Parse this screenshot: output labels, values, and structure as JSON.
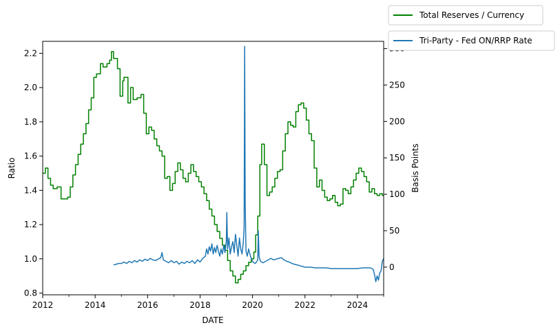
{
  "chart_data": {
    "type": "line",
    "xlabel": "DATE",
    "ylabel_left": "Ratio",
    "ylabel_right": "Basis Points",
    "xlim": [
      2012.0,
      2025.0
    ],
    "ylim_left": [
      0.79,
      2.27
    ],
    "ylim_right": [
      -38,
      310
    ],
    "x_ticks": [
      2012,
      2014,
      2016,
      2018,
      2020,
      2022,
      2024
    ],
    "x_tick_labels": [
      "2012",
      "2014",
      "2016",
      "2018",
      "2020",
      "2022",
      "2024"
    ],
    "y_left_ticks": [
      0.8,
      1.0,
      1.2,
      1.4,
      1.6,
      1.8,
      2.0,
      2.2
    ],
    "y_left_tick_labels": [
      "0.8",
      "1.0",
      "1.2",
      "1.4",
      "1.6",
      "1.8",
      "2.0",
      "2.2"
    ],
    "y_right_ticks": [
      0,
      50,
      100,
      150,
      200,
      250,
      300
    ],
    "y_right_tick_labels": [
      "0",
      "50",
      "100",
      "150",
      "200",
      "250",
      "300"
    ],
    "legend": {
      "placement": "upper right, outside axes"
    },
    "series": [
      {
        "name": "Total Reserves / Currency",
        "axis": "left",
        "color": "#008000",
        "style": "step",
        "x": [
          2012.0,
          2012.1,
          2012.2,
          2012.3,
          2012.4,
          2012.55,
          2012.7,
          2012.95,
          2013.05,
          2013.15,
          2013.25,
          2013.35,
          2013.45,
          2013.55,
          2013.65,
          2013.75,
          2013.85,
          2013.95,
          2014.05,
          2014.2,
          2014.3,
          2014.45,
          2014.55,
          2014.62,
          2014.7,
          2014.85,
          2014.95,
          2015.05,
          2015.1,
          2015.25,
          2015.35,
          2015.45,
          2015.6,
          2015.75,
          2015.85,
          2015.95,
          2016.05,
          2016.15,
          2016.25,
          2016.35,
          2016.45,
          2016.55,
          2016.65,
          2016.75,
          2016.85,
          2016.95,
          2017.05,
          2017.15,
          2017.25,
          2017.35,
          2017.45,
          2017.55,
          2017.65,
          2017.75,
          2017.85,
          2017.95,
          2018.05,
          2018.15,
          2018.25,
          2018.35,
          2018.45,
          2018.55,
          2018.65,
          2018.75,
          2018.85,
          2018.95,
          2019.05,
          2019.15,
          2019.25,
          2019.35,
          2019.45,
          2019.55,
          2019.65,
          2019.75,
          2019.85,
          2019.95,
          2020.05,
          2020.12,
          2020.2,
          2020.28,
          2020.35,
          2020.45,
          2020.55,
          2020.65,
          2020.75,
          2020.85,
          2020.95,
          2021.05,
          2021.15,
          2021.25,
          2021.35,
          2021.45,
          2021.55,
          2021.65,
          2021.75,
          2021.85,
          2021.95,
          2022.05,
          2022.15,
          2022.25,
          2022.35,
          2022.45,
          2022.55,
          2022.65,
          2022.75,
          2022.85,
          2022.95,
          2023.05,
          2023.15,
          2023.25,
          2023.35,
          2023.45,
          2023.55,
          2023.65,
          2023.75,
          2023.85,
          2023.95,
          2024.05,
          2024.15,
          2024.25,
          2024.35,
          2024.45,
          2024.55,
          2024.65,
          2024.75,
          2024.85,
          2024.95,
          2025.0
        ],
        "values": [
          1.5,
          1.53,
          1.47,
          1.43,
          1.41,
          1.42,
          1.35,
          1.36,
          1.42,
          1.49,
          1.55,
          1.61,
          1.67,
          1.73,
          1.79,
          1.87,
          1.94,
          2.06,
          2.08,
          2.14,
          2.12,
          2.14,
          2.16,
          2.21,
          2.17,
          2.11,
          1.95,
          2.04,
          2.06,
          1.91,
          2.0,
          1.93,
          1.94,
          1.96,
          1.85,
          1.73,
          1.77,
          1.75,
          1.7,
          1.66,
          1.63,
          1.6,
          1.47,
          1.48,
          1.4,
          1.44,
          1.51,
          1.56,
          1.52,
          1.47,
          1.45,
          1.5,
          1.55,
          1.51,
          1.48,
          1.45,
          1.42,
          1.38,
          1.34,
          1.29,
          1.25,
          1.2,
          1.16,
          1.12,
          1.08,
          1.05,
          0.99,
          0.93,
          0.9,
          0.86,
          0.88,
          0.91,
          0.93,
          0.96,
          0.98,
          1.0,
          1.04,
          1.14,
          1.25,
          1.55,
          1.67,
          1.55,
          1.37,
          1.39,
          1.42,
          1.47,
          1.51,
          1.52,
          1.63,
          1.73,
          1.8,
          1.78,
          1.77,
          1.86,
          1.9,
          1.91,
          1.88,
          1.81,
          1.73,
          1.69,
          1.53,
          1.42,
          1.46,
          1.4,
          1.36,
          1.34,
          1.35,
          1.37,
          1.33,
          1.31,
          1.32,
          1.41,
          1.4,
          1.38,
          1.42,
          1.46,
          1.5,
          1.53,
          1.51,
          1.48,
          1.45,
          1.39,
          1.41,
          1.38,
          1.37,
          1.38,
          1.37,
          1.37
        ],
        "comment": ""
      },
      {
        "name": "Tri-Party - Fed ON/RRP Rate",
        "axis": "right",
        "color": "#1f77b4",
        "style": "line",
        "x": [
          2014.7,
          2014.8,
          2014.9,
          2015.0,
          2015.1,
          2015.2,
          2015.3,
          2015.4,
          2015.5,
          2015.6,
          2015.7,
          2015.8,
          2015.9,
          2016.0,
          2016.1,
          2016.2,
          2016.3,
          2016.4,
          2016.5,
          2016.55,
          2016.6,
          2016.7,
          2016.8,
          2016.9,
          2017.0,
          2017.1,
          2017.2,
          2017.3,
          2017.4,
          2017.5,
          2017.6,
          2017.7,
          2017.8,
          2017.9,
          2018.0,
          2018.1,
          2018.2,
          2018.25,
          2018.3,
          2018.35,
          2018.4,
          2018.45,
          2018.5,
          2018.55,
          2018.6,
          2018.65,
          2018.7,
          2018.75,
          2018.8,
          2018.85,
          2018.9,
          2018.95,
          2019.0,
          2019.02,
          2019.05,
          2019.1,
          2019.15,
          2019.2,
          2019.25,
          2019.3,
          2019.35,
          2019.4,
          2019.45,
          2019.5,
          2019.55,
          2019.6,
          2019.65,
          2019.68,
          2019.7,
          2019.72,
          2019.75,
          2019.8,
          2019.85,
          2019.9,
          2019.95,
          2020.0,
          2020.05,
          2020.1,
          2020.15,
          2020.2,
          2020.22,
          2020.25,
          2020.3,
          2020.4,
          2020.5,
          2020.6,
          2020.7,
          2020.8,
          2020.9,
          2021.0,
          2021.1,
          2021.2,
          2021.3,
          2021.4,
          2021.5,
          2021.6,
          2021.7,
          2021.8,
          2021.9,
          2022.0,
          2022.2,
          2022.4,
          2022.6,
          2022.8,
          2023.0,
          2023.2,
          2023.4,
          2023.6,
          2023.8,
          2024.0,
          2024.2,
          2024.4,
          2024.5,
          2024.6,
          2024.65,
          2024.7,
          2024.75,
          2024.8,
          2024.85,
          2024.9,
          2024.95,
          2025.0
        ],
        "values": [
          3,
          4,
          5,
          5,
          7,
          5,
          8,
          6,
          9,
          7,
          10,
          8,
          11,
          9,
          12,
          10,
          9,
          11,
          13,
          20,
          10,
          8,
          6,
          9,
          6,
          8,
          4,
          7,
          5,
          8,
          6,
          9,
          5,
          10,
          7,
          12,
          15,
          25,
          18,
          28,
          22,
          32,
          18,
          27,
          20,
          30,
          22,
          15,
          25,
          18,
          30,
          20,
          35,
          75,
          25,
          40,
          18,
          28,
          35,
          20,
          45,
          30,
          15,
          40,
          25,
          18,
          35,
          55,
          303,
          90,
          22,
          15,
          25,
          18,
          12,
          8,
          6,
          5,
          7,
          10,
          50,
          15,
          8,
          6,
          8,
          10,
          12,
          10,
          11,
          12,
          13,
          10,
          8,
          7,
          5,
          4,
          3,
          2,
          1,
          0,
          0,
          -1,
          -1,
          -1,
          -2,
          -2,
          -2,
          -2,
          -2,
          -2,
          -1,
          -1,
          -1,
          -3,
          -10,
          -20,
          -12,
          -18,
          -8,
          -5,
          8,
          12
        ],
        "comment": ""
      }
    ]
  }
}
